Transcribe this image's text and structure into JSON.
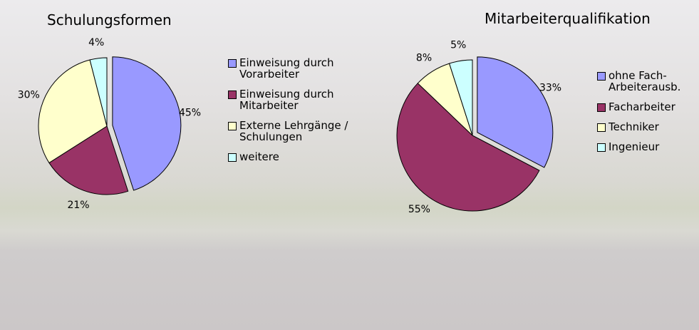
{
  "chart_data": [
    {
      "type": "pie",
      "title": "Schulungsformen",
      "categories": [
        "Einweisung durch Vorarbeiter",
        "Einweisung durch Mitarbeiter",
        "Externe Lehrgänge / Schulungen",
        "weitere"
      ],
      "values": [
        45,
        21,
        30,
        4
      ],
      "value_labels": [
        "45%",
        "21%",
        "30%",
        "4%"
      ],
      "colors": [
        "#9999ff",
        "#993366",
        "#ffffcc",
        "#ccffff"
      ]
    },
    {
      "type": "pie",
      "title": "Mitarbeiterqualifikation",
      "categories": [
        "ohne Fach-Arbeiterausb.",
        "Facharbeiter",
        "Techniker",
        "Ingenieur"
      ],
      "values": [
        33,
        55,
        8,
        5
      ],
      "value_labels": [
        "33%",
        "55%",
        "8%",
        "5%"
      ],
      "colors": [
        "#9999ff",
        "#993366",
        "#ffffcc",
        "#ccffff"
      ]
    }
  ]
}
